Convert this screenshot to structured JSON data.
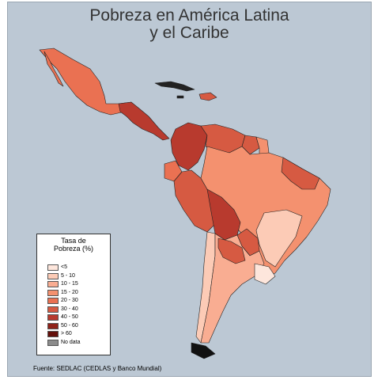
{
  "title_line1": "Pobreza en América Latina",
  "title_line2": "y el Caribe",
  "legend": {
    "title_line1": "Tasa de",
    "title_line2": "Pobreza (%)",
    "items": [
      {
        "label": "<5",
        "color": "#fde6dc"
      },
      {
        "label": "5 - 10",
        "color": "#fccbb6"
      },
      {
        "label": "10 - 15",
        "color": "#f9ad92"
      },
      {
        "label": "15 - 20",
        "color": "#f4916f"
      },
      {
        "label": "20 - 30",
        "color": "#ea7152"
      },
      {
        "label": "30 - 40",
        "color": "#d65a42"
      },
      {
        "label": "40 - 50",
        "color": "#b83a2e"
      },
      {
        "label": "50 - 60",
        "color": "#8f2219"
      },
      {
        "label": "> 60",
        "color": "#64100b"
      },
      {
        "label": "No data",
        "color": "#8c8c8c"
      }
    ]
  },
  "source": "Fuente: SEDLAC (CEDLAS y Banco Mundial)",
  "colors": {
    "background": "#bcc8d4",
    "border": "#333333"
  }
}
